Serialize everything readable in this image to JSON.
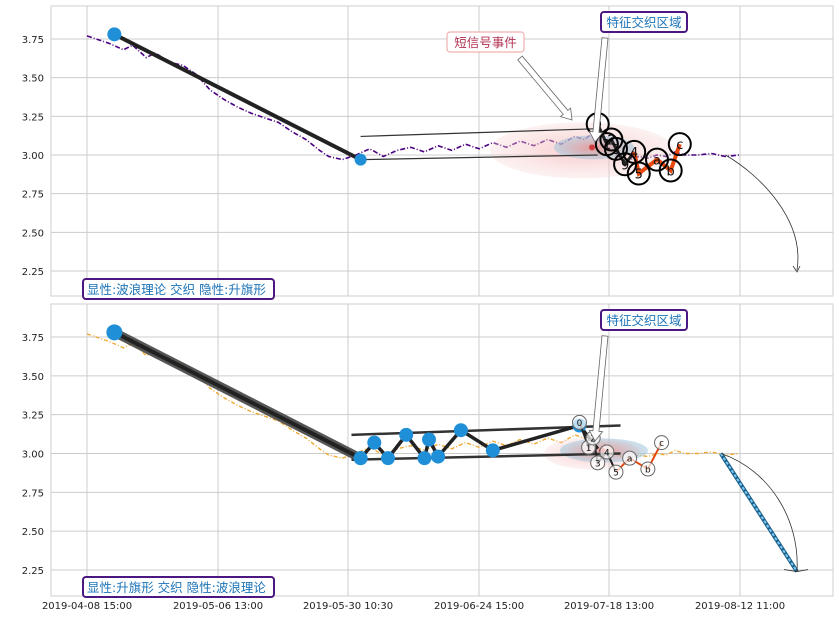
{
  "colors": {
    "top_series": "#4b0082",
    "bottom_series": "#f0a830",
    "marker": "#1f8fd8",
    "wave_line": "#222222",
    "flag_line": "#333333",
    "inner_wave": "#e8490f",
    "ellipse_outer": "#f4c2c2",
    "ellipse_inner": "#9ecae1",
    "label_border": "#4b1780",
    "label_text": "#1a73b8",
    "short_signal_text": "#b03050",
    "projection": "#1f8fd8",
    "grid": "#cccccc"
  },
  "chart_data": [
    {
      "type": "line",
      "panel": "top",
      "x_tick_labels": [
        "2019-04-08 15:00",
        "2019-05-06 13:00",
        "2019-05-30 10:30",
        "2019-06-24 15:00",
        "2019-07-18 13:00",
        "2019-08-12 11:00"
      ],
      "y_ticks": [
        2.25,
        2.5,
        2.75,
        3.0,
        3.25,
        3.5,
        3.75
      ],
      "ylim": [
        2.1,
        3.95
      ],
      "grid": true,
      "series_points": [
        [
          0,
          3.77
        ],
        [
          3,
          3.74
        ],
        [
          5,
          3.72
        ],
        [
          8,
          3.68
        ],
        [
          10,
          3.71
        ],
        [
          13,
          3.63
        ],
        [
          15,
          3.66
        ],
        [
          18,
          3.6
        ],
        [
          21,
          3.58
        ],
        [
          24,
          3.52
        ],
        [
          27,
          3.42
        ],
        [
          30,
          3.36
        ],
        [
          33,
          3.31
        ],
        [
          36,
          3.27
        ],
        [
          39,
          3.24
        ],
        [
          42,
          3.21
        ],
        [
          45,
          3.15
        ],
        [
          48,
          3.1
        ],
        [
          51,
          3.03
        ],
        [
          53,
          2.99
        ],
        [
          56,
          2.97
        ],
        [
          59,
          3.0
        ],
        [
          62,
          3.04
        ],
        [
          65,
          2.99
        ],
        [
          68,
          3.03
        ],
        [
          71,
          3.05
        ],
        [
          74,
          3.02
        ],
        [
          77,
          3.06
        ],
        [
          80,
          3.03
        ],
        [
          83,
          3.07
        ],
        [
          86,
          3.04
        ],
        [
          89,
          3.08
        ],
        [
          92,
          3.05
        ],
        [
          95,
          3.09
        ],
        [
          98,
          3.06
        ],
        [
          101,
          3.1
        ],
        [
          104,
          3.07
        ],
        [
          107,
          3.12
        ],
        [
          109,
          3.1
        ],
        [
          111,
          3.14
        ],
        [
          113,
          3.07
        ],
        [
          115,
          3.03
        ],
        [
          117,
          2.98
        ],
        [
          119,
          2.97
        ],
        [
          121,
          2.99
        ],
        [
          123,
          2.98
        ],
        [
          125,
          3.0
        ],
        [
          127,
          2.99
        ],
        [
          129,
          3.02
        ],
        [
          131,
          3.0
        ],
        [
          134,
          3.0
        ],
        [
          137,
          3.01
        ],
        [
          140,
          2.99
        ],
        [
          143,
          3.0
        ]
      ],
      "wave_points": [
        [
          6,
          3.78
        ],
        [
          60,
          2.97
        ]
      ],
      "flag_upper": [
        [
          60,
          3.12
        ],
        [
          112,
          3.17
        ]
      ],
      "flag_lower": [
        [
          60,
          2.97
        ],
        [
          112,
          3.0
        ]
      ],
      "elliptic_wave": [
        {
          "label": "0",
          "x": 112,
          "y": 3.2
        },
        {
          "label": "1",
          "x": 114,
          "y": 3.07
        },
        {
          "label": "2",
          "x": 115,
          "y": 3.1
        },
        {
          "label": "3",
          "x": 116,
          "y": 3.04
        },
        {
          "label": "9",
          "x": 118,
          "y": 2.94
        },
        {
          "label": "4",
          "x": 120,
          "y": 3.02
        },
        {
          "label": "5",
          "x": 121,
          "y": 2.88
        },
        {
          "label": "a",
          "x": 125,
          "y": 2.97
        },
        {
          "label": "b",
          "x": 128,
          "y": 2.9
        },
        {
          "label": "c",
          "x": 130,
          "y": 3.07
        }
      ],
      "annotations": [
        {
          "text": "短信号事件",
          "kind": "short_signal"
        },
        {
          "text": "特征交织区域",
          "kind": "region"
        }
      ],
      "caption": "显性:波浪理论 交织 隐性:升旗形"
    },
    {
      "type": "line",
      "panel": "bottom",
      "x_tick_labels": [
        "2019-04-08 15:00",
        "2019-05-06 13:00",
        "2019-05-30 10:30",
        "2019-06-24 15:00",
        "2019-07-18 13:00",
        "2019-08-12 11:00"
      ],
      "y_ticks": [
        2.25,
        2.5,
        2.75,
        3.0,
        3.25,
        3.5,
        3.75
      ],
      "ylim": [
        2.12,
        3.95
      ],
      "grid": true,
      "series_points": [
        [
          0,
          3.77
        ],
        [
          3,
          3.74
        ],
        [
          5,
          3.72
        ],
        [
          8,
          3.68
        ],
        [
          10,
          3.71
        ],
        [
          13,
          3.63
        ],
        [
          15,
          3.66
        ],
        [
          18,
          3.6
        ],
        [
          21,
          3.58
        ],
        [
          24,
          3.52
        ],
        [
          27,
          3.42
        ],
        [
          30,
          3.36
        ],
        [
          33,
          3.31
        ],
        [
          36,
          3.27
        ],
        [
          39,
          3.24
        ],
        [
          42,
          3.21
        ],
        [
          45,
          3.15
        ],
        [
          48,
          3.1
        ],
        [
          51,
          3.03
        ],
        [
          53,
          2.99
        ],
        [
          56,
          2.97
        ],
        [
          59,
          3.0
        ],
        [
          62,
          3.04
        ],
        [
          65,
          2.99
        ],
        [
          68,
          3.03
        ],
        [
          71,
          3.05
        ],
        [
          74,
          3.02
        ],
        [
          77,
          3.06
        ],
        [
          80,
          3.03
        ],
        [
          83,
          3.07
        ],
        [
          86,
          3.04
        ],
        [
          89,
          3.08
        ],
        [
          92,
          3.05
        ],
        [
          95,
          3.09
        ],
        [
          98,
          3.06
        ],
        [
          101,
          3.1
        ],
        [
          104,
          3.07
        ],
        [
          107,
          3.12
        ],
        [
          109,
          3.1
        ],
        [
          111,
          3.14
        ],
        [
          113,
          3.07
        ],
        [
          115,
          3.03
        ],
        [
          117,
          2.98
        ],
        [
          119,
          2.97
        ],
        [
          121,
          2.99
        ],
        [
          123,
          2.98
        ],
        [
          125,
          3.0
        ],
        [
          127,
          2.99
        ],
        [
          129,
          3.02
        ],
        [
          131,
          3.0
        ],
        [
          134,
          3.0
        ],
        [
          137,
          3.01
        ],
        [
          140,
          2.99
        ],
        [
          143,
          3.0
        ]
      ],
      "wave_points": [
        [
          6,
          3.78
        ],
        [
          60,
          2.97
        ]
      ],
      "flag_zigzag": [
        [
          60,
          2.97
        ],
        [
          63,
          3.07
        ],
        [
          66,
          2.97
        ],
        [
          70,
          3.12
        ],
        [
          74,
          2.97
        ],
        [
          75,
          3.09
        ],
        [
          77,
          2.98
        ],
        [
          82,
          3.15
        ],
        [
          89,
          3.02
        ],
        [
          108,
          3.18
        ],
        [
          112,
          3.03
        ]
      ],
      "flag_upper": [
        [
          58,
          3.12
        ],
        [
          117,
          3.18
        ]
      ],
      "flag_lower": [
        [
          58,
          2.96
        ],
        [
          117,
          3.0
        ]
      ],
      "elliptic_wave": [
        {
          "label": "0",
          "x": 108,
          "y": 3.2
        },
        {
          "label": "1",
          "x": 110,
          "y": 3.04
        },
        {
          "label": "2",
          "x": 111,
          "y": 3.1
        },
        {
          "label": "3",
          "x": 112,
          "y": 2.94
        },
        {
          "label": "4",
          "x": 114,
          "y": 3.01
        },
        {
          "label": "5",
          "x": 116,
          "y": 2.88
        },
        {
          "label": "a",
          "x": 119,
          "y": 2.97
        },
        {
          "label": "b",
          "x": 123,
          "y": 2.9
        },
        {
          "label": "c",
          "x": 126,
          "y": 3.07
        }
      ],
      "projection": [
        [
          139,
          3.0
        ],
        [
          152,
          2.24
        ]
      ],
      "annotations": [
        {
          "text": "特征交织区域",
          "kind": "region"
        }
      ],
      "caption": "显性:升旗形 交织 隐性:波浪理论"
    }
  ]
}
